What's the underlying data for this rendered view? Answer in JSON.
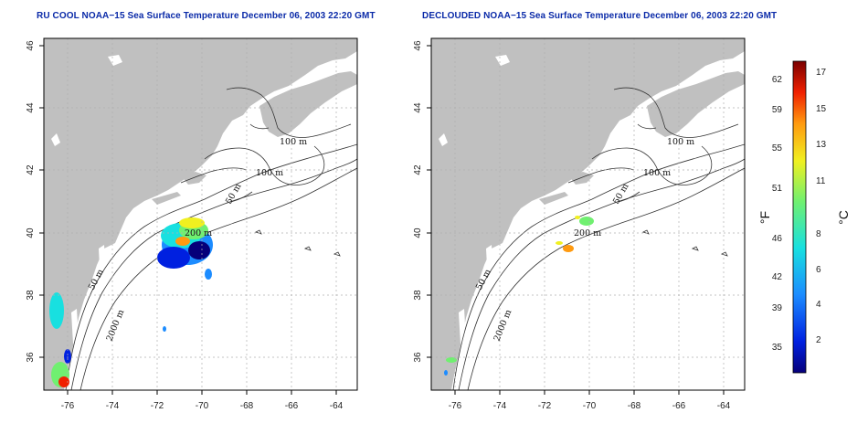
{
  "titles": {
    "left": "RU COOL NOAA−15 Sea Surface Temperature December 06, 2003 22:20 GMT",
    "right": "DECLOUDED NOAA−15 Sea Surface Temperature December 06, 2003 22:20 GMT"
  },
  "map": {
    "lon_ticks": [
      "-76",
      "-74",
      "-72",
      "-70",
      "-68",
      "-66",
      "-64"
    ],
    "lat_ticks": [
      "46",
      "44",
      "42",
      "40",
      "38",
      "36"
    ],
    "contour_labels": [
      "100 m",
      "100 m",
      "50 m",
      "200 m",
      "50 m",
      "2000 m"
    ],
    "colors": {
      "land": "#c0c0c0",
      "ocean": "#ffffff",
      "contour": "#333333",
      "grid": "#b0b0b0"
    }
  },
  "colorbar": {
    "fahrenheit_ticks": [
      "62",
      "59",
      "55",
      "51",
      "46",
      "42",
      "39",
      "35"
    ],
    "celsius_ticks": [
      "17",
      "15",
      "13",
      "11",
      "8",
      "6",
      "4",
      "2"
    ],
    "fahrenheit_label": "°F",
    "celsius_label": "°C"
  }
}
